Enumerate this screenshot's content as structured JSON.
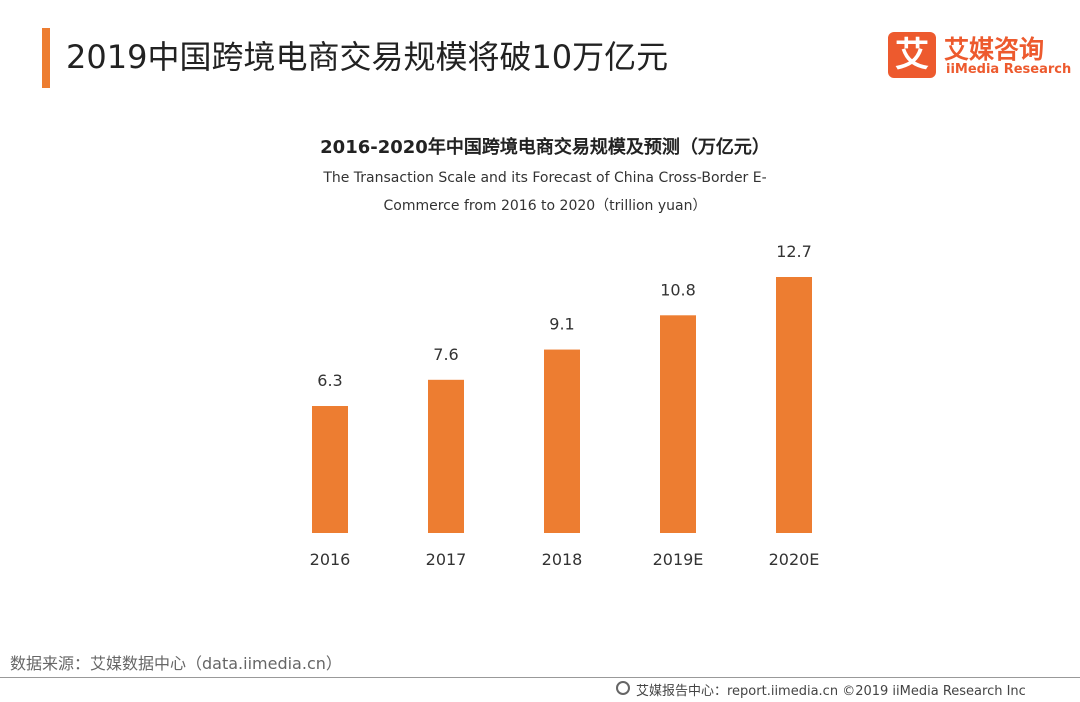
{
  "header": {
    "title": "2019中国跨境电商交易规模将破10万亿元",
    "logo_icon": "艾",
    "logo_name": "艾媒咨询",
    "logo_sub": "iiMedia Research"
  },
  "chart_data": {
    "type": "bar",
    "title": "2016-2020年中国跨境电商交易规模及预测（万亿元）",
    "subtitle": "The Transaction Scale and its Forecast of China Cross-Border E-Commerce from 2016 to 2020（trillion yuan）",
    "categories": [
      "2016",
      "2017",
      "2018",
      "2019E",
      "2020E"
    ],
    "values": [
      6.3,
      7.6,
      9.1,
      10.8,
      12.7
    ],
    "color": "#ed7d31"
  },
  "footer": {
    "source": "数据来源：艾媒数据中心（data.iimedia.cn）",
    "copyright": "艾媒报告中心：report.iimedia.cn  ©2019  iiMedia Research  Inc"
  }
}
